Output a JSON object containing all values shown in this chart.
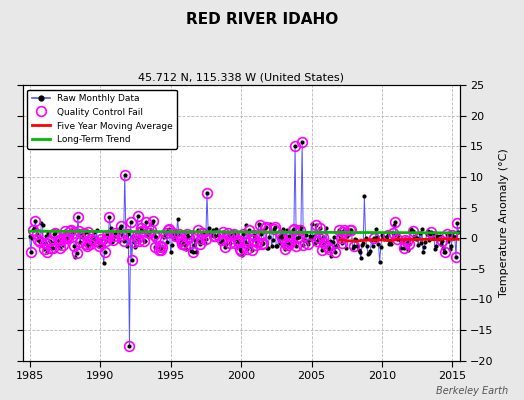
{
  "title": "RED RIVER IDAHO",
  "subtitle": "45.712 N, 115.338 W (United States)",
  "ylabel_right": "Temperature Anomaly (°C)",
  "watermark": "Berkeley Earth",
  "xlim": [
    1984.5,
    2015.5
  ],
  "ylim": [
    -20,
    25
  ],
  "yticks": [
    -20,
    -15,
    -10,
    -5,
    0,
    5,
    10,
    15,
    20,
    25
  ],
  "xticks": [
    1985,
    1990,
    1995,
    2000,
    2005,
    2010,
    2015
  ],
  "bg_color": "#e8e8e8",
  "plot_bg_color": "#ffffff",
  "grid_color": "#b8b8b8",
  "raw_color": "#5555ff",
  "raw_marker_color": "#000000",
  "qc_fail_color": "#ff00ff",
  "moving_avg_color": "#ff0000",
  "trend_color": "#00bb00",
  "seed": 17
}
